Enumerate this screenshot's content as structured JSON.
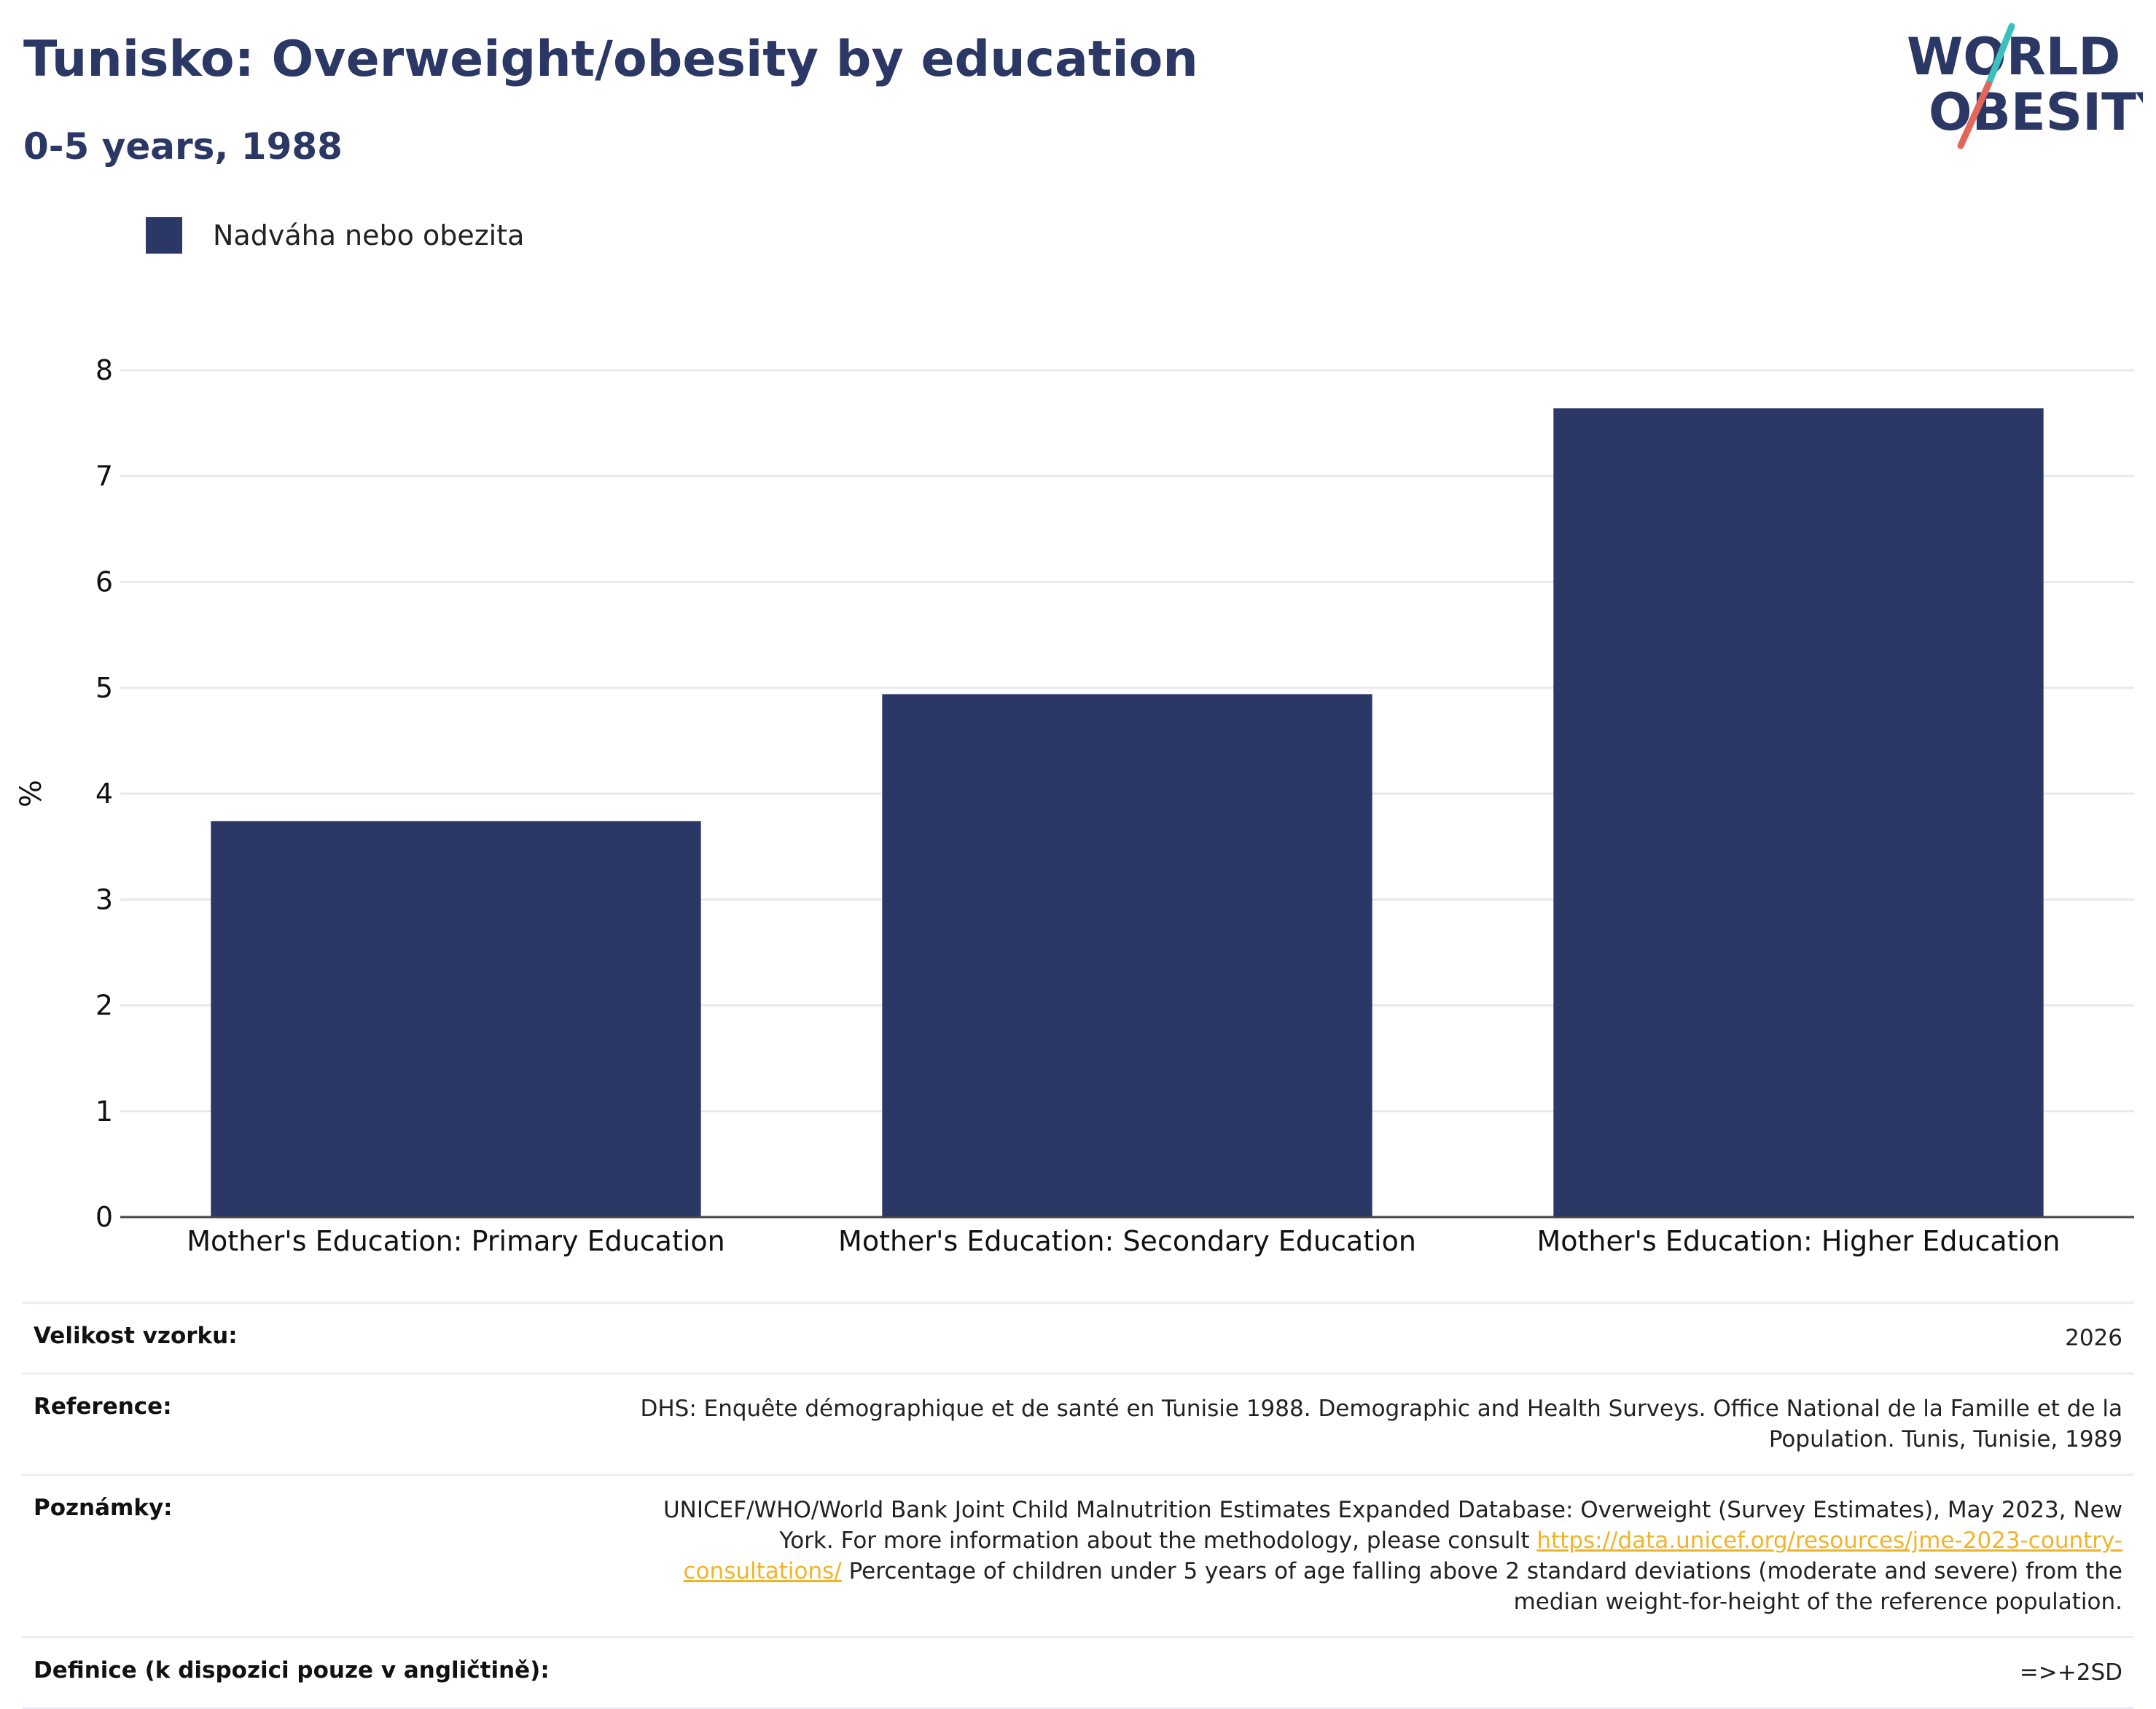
{
  "header": {
    "title": "Tunisko: Overweight/obesity by education",
    "subtitle": "0-5 years, 1988"
  },
  "logo": {
    "line1": "WORLD",
    "line2": "OBESITY"
  },
  "legend": {
    "label": "Nadváha nebo obezita"
  },
  "colors": {
    "bar": "#2b3764",
    "grid": "#e8e8ee",
    "logo_teal": "#3dbfbf",
    "logo_red": "#e2675b",
    "link": "#f0b429"
  },
  "chart_data": {
    "type": "bar",
    "categories": [
      "Mother's Education: Primary Education",
      "Mother's Education: Secondary Education",
      "Mother's Education: Higher Education"
    ],
    "series": [
      {
        "name": "Nadváha nebo obezita",
        "values": [
          3.74,
          4.94,
          7.64
        ]
      }
    ],
    "ylabel": "%",
    "ylim": [
      0,
      8
    ],
    "yticks": [
      "0",
      "1",
      "2",
      "3",
      "4",
      "5",
      "6",
      "7",
      "8"
    ],
    "grid": true,
    "legend_position": "top-left"
  },
  "footer": {
    "rows": [
      {
        "key": "Velikost vzorku:",
        "value": "2026"
      },
      {
        "key": "Reference:",
        "value": "DHS: Enquête démographique et de santé en Tunisie 1988. Demographic and Health Surveys. Office National de la Famille et de la Population. Tunis, Tunisie, 1989"
      },
      {
        "key": "Poznámky:",
        "value_before": "UNICEF/WHO/World Bank Joint Child Malnutrition Estimates Expanded Database: Overweight (Survey Estimates), May 2023, New York. For more information about the methodology, please consult ",
        "link": "https://data.unicef.org/resources/jme-2023-country-consultations/",
        "value_after": " Percentage of children under 5 years of age falling above 2 standard deviations (moderate and severe) from the median weight-for-height of the reference population."
      },
      {
        "key": "Definice (k dispozici pouze v angličtině):",
        "value": "=>+2SD"
      }
    ]
  }
}
